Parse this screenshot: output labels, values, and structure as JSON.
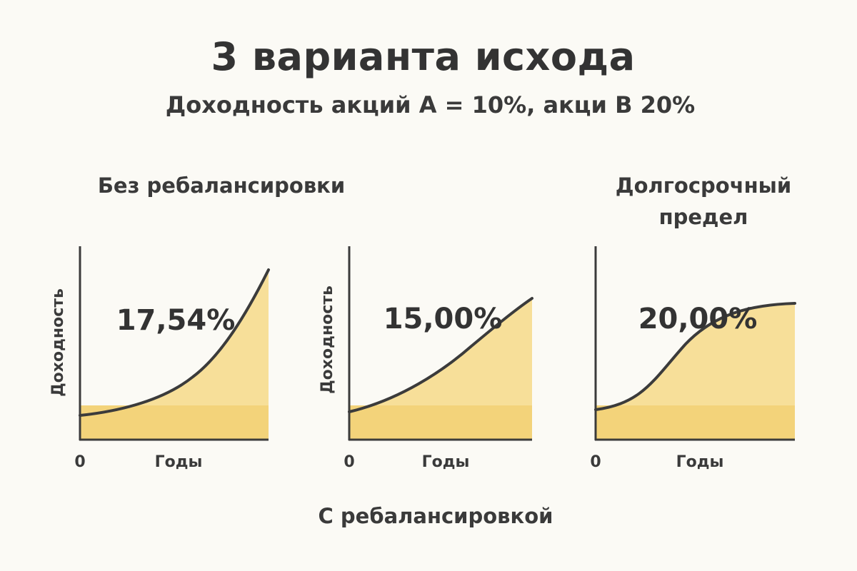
{
  "title": "3 варианта исхода",
  "subtitle": "Доходность акций A = 10%, акци B 20%",
  "bottom_label": "С ребалансировкой",
  "colors": {
    "area_light": "#f7df99",
    "area_dark": "#f3d37a",
    "line": "#3b3b3b",
    "background": "#fbfaf5"
  },
  "chart_data": [
    {
      "type": "area",
      "title": "Без ребалансировки",
      "ylabel": "Доходность",
      "xlabel": "Годы",
      "x_start_label": "0",
      "value_label": "17,54%",
      "curve": "convex"
    },
    {
      "type": "area",
      "title": "",
      "ylabel": "Доходность",
      "xlabel": "Годы",
      "x_start_label": "0",
      "value_label": "15,00%",
      "curve": "rising"
    },
    {
      "type": "area",
      "title": "Долгосрочный предел",
      "ylabel": "",
      "xlabel": "Годы",
      "x_start_label": "0",
      "value_label": "20,00%",
      "curve": "s-curve"
    }
  ]
}
